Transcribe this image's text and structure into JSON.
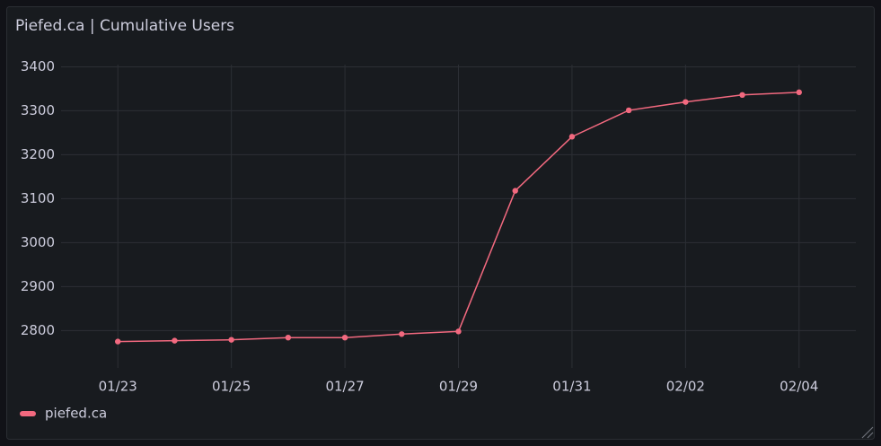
{
  "chart_data": {
    "type": "line",
    "title": "Piefed.ca | Cumulative Users",
    "x": [
      "01/23",
      "01/24",
      "01/25",
      "01/26",
      "01/27",
      "01/28",
      "01/29",
      "01/30",
      "01/31",
      "02/01",
      "02/02",
      "02/03",
      "02/04"
    ],
    "series": [
      {
        "name": "piefed.ca",
        "color": "#f2697f",
        "values": [
          2775,
          2777,
          2779,
          2784,
          2784,
          2792,
          2798,
          3118,
          3241,
          3301,
          3320,
          3336,
          3342
        ]
      }
    ],
    "xlim": [
      "01/22",
      "02/05"
    ],
    "xticks": [
      "01/23",
      "01/25",
      "01/27",
      "01/29",
      "01/31",
      "02/02",
      "02/04"
    ],
    "ylim": [
      2715,
      3405
    ],
    "yticks": [
      2800,
      2900,
      3000,
      3100,
      3200,
      3300,
      3400
    ],
    "grid": true,
    "legend": "bottom-left"
  }
}
